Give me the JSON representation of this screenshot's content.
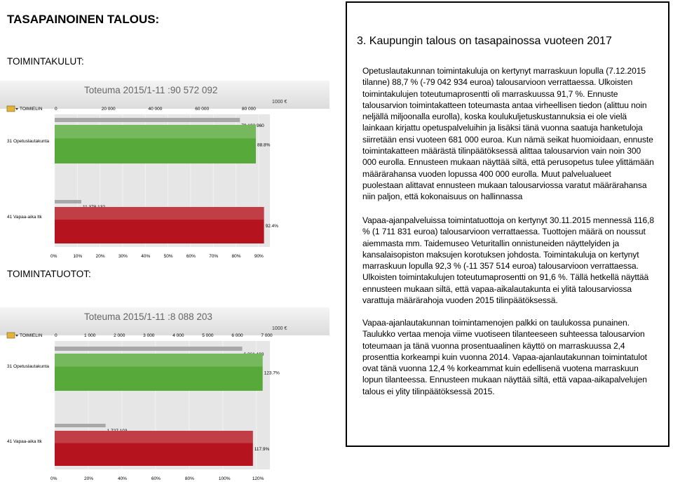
{
  "page": {
    "heading": "TASAPAINOINEN TALOUS:",
    "label_expenses": "TOIMINTAKULUT:",
    "label_revenue": "TOIMINTATUOTOT:"
  },
  "panel": {
    "title": "3. Kaupungin talous on tasapainossa vuoteen 2017",
    "paragraphs": [
      "Opetuslautakunnan toimintakuluja on kertynyt marraskuun lopulla (7.12.2015 tilanne) 88,7 % (-79 042 934 euroa) talousarvioon verrattaessa. Ulkoisten toimintakulujen toteutumaprosentti oli marraskuussa 91,7 %. Ennuste talousarvion toimintakatteen toteumasta antaa virheellisen tiedon (alittuu noin neljällä miljoonalla eurolla), koska koulukuljetuskustannuksia ei ole vielä lainkaan kirjattu opetuspalveluihin ja lisäksi tänä vuonna saatuja hanketuloja siirretään ensi vuoteen 681 000 euroa. Kun nämä seikat huomioidaan, ennuste toimintakatteen määrästä tilinpäätöksessä alittaa talousarvion vain noin 300 000 eurolla. Ennusteen mukaan näyttää siltä, että perusopetus tulee ylittämään määrärahansa vuoden lopussa 400 000 eurolla. Muut palvelualueet puolestaan alittavat ennusteen mukaan talousarviossa varatut määrärahansa niin paljon, että kokonaisuus on hallinnassa",
      "Vapaa-ajanpalveluissa toimintatuottoja on kertynyt 30.11.2015 mennessä 116,8 % (1 711 831 euroa) talousarvioon verrattaessa. Tuottojen määrä on noussut aiemmasta mm. Taidemuseo Veturitallin onnistuneiden näyttelyiden ja kansalaisopiston maksujen korotuksen johdosta. Toimintakuluja on kertynyt marraskuun lopulla 92,3 % (-11 357 514 euroa) talousarvioon verrattaessa. Ulkoisten toimintakulujen toteutumaprosentti on 91,6 %. Tällä hetkellä näyttää ennusteen mukaan siltä, että vapaa-aikalautakunta ei ylitä talousarviossa varattuja määrärahoja vuoden 2015 tilinpäätöksessä.",
      "Vapaa-ajanlautakunnan toimintamenojen palkki on taulukossa punainen. Taulukko vertaa menoja viime vuotiseen tilanteeseen suhteessa talousarvion toteumaan ja tänä vuonna prosentuaalinen käyttö on marraskuussa 2,4 prosenttia korkeampi kuin vuonna 2014. Vapaa-ajanlautakunnan toimintatulot ovat tänä vuonna 12,4 % korkeammat kuin edellisenä vuotena marraskuun lopun tilanteessa. Ennusteen mukaan näyttää siltä, että vapaa-aikapalvelujen talous ei ylity tilinpäätöksessä 2015."
    ]
  },
  "chart_data": [
    {
      "type": "bar",
      "orientation": "horizontal",
      "title": "Toteuma 2015/1-11 :90 572 092",
      "unit_label": "1000 €",
      "menu_label": "TOIMIELIN",
      "top_axis_ticks": [
        "0",
        "20 000",
        "40 000",
        "60 000",
        "80 000"
      ],
      "bottom_axis_ticks": [
        "0%",
        "10%",
        "20%",
        "30%",
        "40%",
        "50%",
        "60%",
        "70%",
        "80%",
        "90%"
      ],
      "categories": [
        "31 Opetuslautakunta",
        "41 Vapaa-aika ltk"
      ],
      "series": [
        {
          "values": [
            79193.96,
            11378.132
          ],
          "labels": [
            "79 193 960",
            "11 378 132"
          ],
          "color": "#a8a8a8"
        },
        {
          "values": [
            88.8,
            92.4
          ],
          "labels": [
            "88.8%",
            "92.4%"
          ],
          "colors": [
            "#57a93a",
            "#b5141e"
          ]
        }
      ],
      "xlim_amount": [
        0,
        92000
      ],
      "xlim_percent": [
        0,
        95
      ]
    },
    {
      "type": "bar",
      "orientation": "horizontal",
      "title": "Toteuma 2015/1-11 :8 088 203",
      "unit_label": "1000 €",
      "menu_label": "TOIMIELIN",
      "top_axis_ticks": [
        "0",
        "1 000",
        "2 000",
        "3 000",
        "4 000",
        "5 000",
        "6 000",
        "7 000"
      ],
      "bottom_axis_ticks": [
        "0%",
        "20%",
        "40%",
        "60%",
        "80%",
        "100%",
        "120%"
      ],
      "categories": [
        "31 Opetuslautakunta",
        "41 Vapaa-aika ltk"
      ],
      "series": [
        {
          "values": [
            6361.1,
            1727.103
          ],
          "labels": [
            "6 361 100",
            "1 727 103"
          ],
          "color": "#a8a8a8"
        },
        {
          "values": [
            123.7,
            117.9
          ],
          "labels": [
            "123.7%",
            "117.9%"
          ],
          "colors": [
            "#57a93a",
            "#b5141e"
          ]
        }
      ],
      "xlim_amount": [
        0,
        7300
      ],
      "xlim_percent": [
        0,
        128
      ]
    }
  ]
}
